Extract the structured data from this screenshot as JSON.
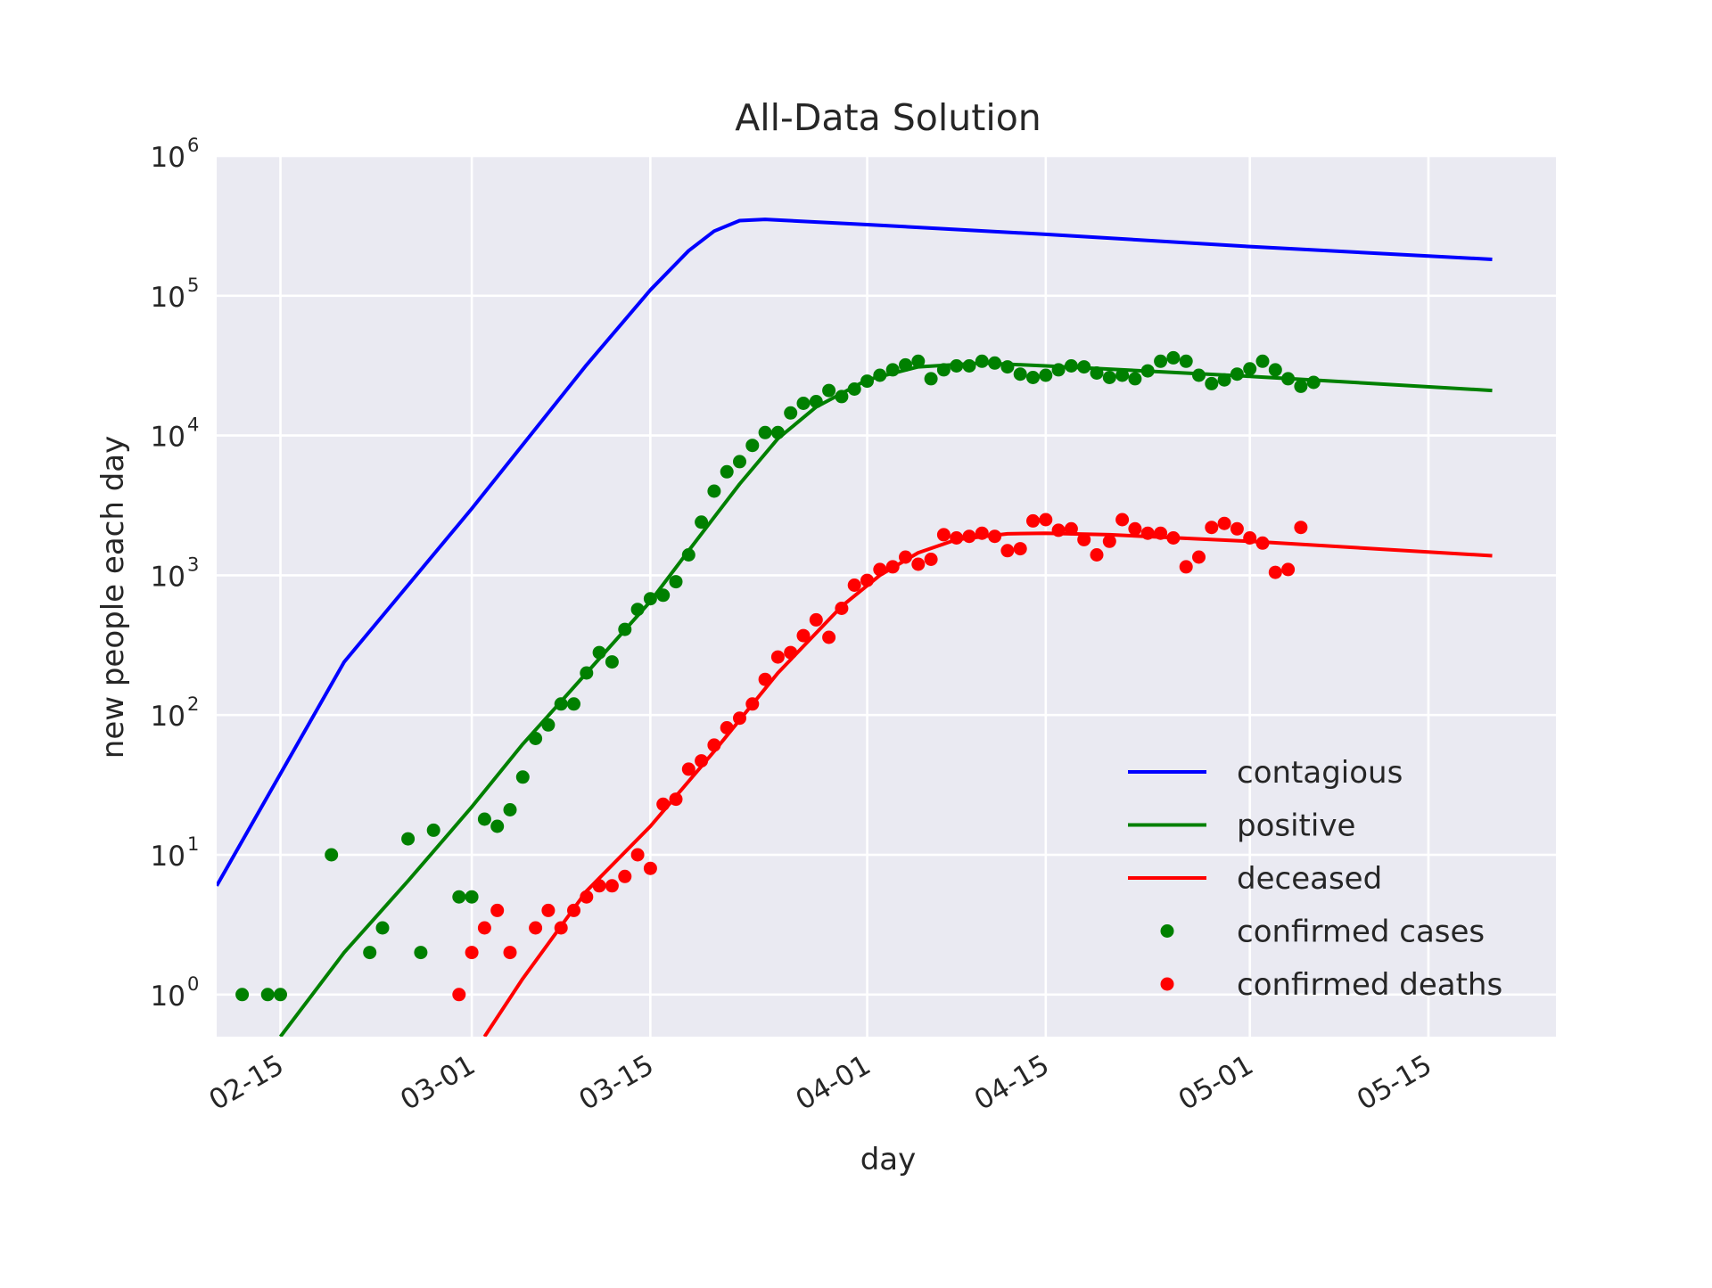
{
  "chart_data": {
    "type": "line",
    "title": "All-Data Solution",
    "xlabel": "day",
    "ylabel": "new people each day",
    "y_scale": "log",
    "ylim": [
      0.5,
      1000000
    ],
    "xlim": [
      "2020-02-10",
      "2020-05-25"
    ],
    "x_ticks": [
      "02-15",
      "03-01",
      "03-15",
      "04-01",
      "04-15",
      "05-01",
      "05-15"
    ],
    "y_ticks": [
      {
        "base": "10",
        "exp": "0"
      },
      {
        "base": "10",
        "exp": "1"
      },
      {
        "base": "10",
        "exp": "2"
      },
      {
        "base": "10",
        "exp": "3"
      },
      {
        "base": "10",
        "exp": "4"
      },
      {
        "base": "10",
        "exp": "5"
      },
      {
        "base": "10",
        "exp": "6"
      }
    ],
    "grid": true,
    "background": "#eaeaf2",
    "legend_position": "lower-right",
    "series": [
      {
        "name": "contagious",
        "kind": "line",
        "color": "#0000ff",
        "points": [
          [
            "2020-02-10",
            6
          ],
          [
            "2020-02-15",
            38
          ],
          [
            "2020-02-20",
            240
          ],
          [
            "2020-03-01",
            3000
          ],
          [
            "2020-03-10",
            32000
          ],
          [
            "2020-03-15",
            110000
          ],
          [
            "2020-03-18",
            210000
          ],
          [
            "2020-03-20",
            290000
          ],
          [
            "2020-03-22",
            345000
          ],
          [
            "2020-03-24",
            352000
          ],
          [
            "2020-04-01",
            323000
          ],
          [
            "2020-04-15",
            275000
          ],
          [
            "2020-05-01",
            225000
          ],
          [
            "2020-05-20",
            182000
          ]
        ]
      },
      {
        "name": "positive",
        "kind": "line",
        "color": "#008000",
        "points": [
          [
            "2020-02-15",
            0.5
          ],
          [
            "2020-02-20",
            2
          ],
          [
            "2020-02-25",
            6.5
          ],
          [
            "2020-03-01",
            22
          ],
          [
            "2020-03-05",
            62
          ],
          [
            "2020-03-10",
            200
          ],
          [
            "2020-03-15",
            650
          ],
          [
            "2020-03-18",
            1500
          ],
          [
            "2020-03-20",
            2600
          ],
          [
            "2020-03-22",
            4500
          ],
          [
            "2020-03-25",
            9500
          ],
          [
            "2020-03-28",
            16000
          ],
          [
            "2020-04-01",
            25000
          ],
          [
            "2020-04-05",
            31000
          ],
          [
            "2020-04-10",
            33000
          ],
          [
            "2020-04-15",
            31500
          ],
          [
            "2020-05-01",
            26500
          ],
          [
            "2020-05-20",
            21000
          ]
        ]
      },
      {
        "name": "deceased",
        "kind": "line",
        "color": "#ff0000",
        "points": [
          [
            "2020-03-02",
            0.5
          ],
          [
            "2020-03-05",
            1.3
          ],
          [
            "2020-03-10",
            5.5
          ],
          [
            "2020-03-15",
            16
          ],
          [
            "2020-03-20",
            55
          ],
          [
            "2020-03-25",
            200
          ],
          [
            "2020-03-30",
            600
          ],
          [
            "2020-04-02",
            1000
          ],
          [
            "2020-04-05",
            1450
          ],
          [
            "2020-04-08",
            1800
          ],
          [
            "2020-04-12",
            1980
          ],
          [
            "2020-04-15",
            2000
          ],
          [
            "2020-04-20",
            1950
          ],
          [
            "2020-05-01",
            1750
          ],
          [
            "2020-05-20",
            1380
          ]
        ]
      },
      {
        "name": "confirmed cases",
        "kind": "scatter",
        "color": "#008000",
        "points": [
          [
            "2020-02-12",
            1
          ],
          [
            "2020-02-14",
            1
          ],
          [
            "2020-02-15",
            1
          ],
          [
            "2020-02-19",
            10
          ],
          [
            "2020-02-22",
            2
          ],
          [
            "2020-02-23",
            3
          ],
          [
            "2020-02-25",
            13
          ],
          [
            "2020-02-26",
            2
          ],
          [
            "2020-02-27",
            15
          ],
          [
            "2020-02-29",
            5
          ],
          [
            "2020-03-01",
            5
          ],
          [
            "2020-03-02",
            18
          ],
          [
            "2020-03-03",
            16
          ],
          [
            "2020-03-04",
            21
          ],
          [
            "2020-03-05",
            36
          ],
          [
            "2020-03-06",
            68
          ],
          [
            "2020-03-07",
            85
          ],
          [
            "2020-03-08",
            120
          ],
          [
            "2020-03-09",
            120
          ],
          [
            "2020-03-10",
            200
          ],
          [
            "2020-03-11",
            280
          ],
          [
            "2020-03-12",
            240
          ],
          [
            "2020-03-13",
            410
          ],
          [
            "2020-03-14",
            570
          ],
          [
            "2020-03-15",
            680
          ],
          [
            "2020-03-16",
            720
          ],
          [
            "2020-03-17",
            900
          ],
          [
            "2020-03-18",
            1400
          ],
          [
            "2020-03-19",
            2400
          ],
          [
            "2020-03-20",
            4000
          ],
          [
            "2020-03-21",
            5500
          ],
          [
            "2020-03-22",
            6500
          ],
          [
            "2020-03-23",
            8500
          ],
          [
            "2020-03-24",
            10500
          ],
          [
            "2020-03-25",
            10500
          ],
          [
            "2020-03-26",
            14500
          ],
          [
            "2020-03-27",
            17000
          ],
          [
            "2020-03-28",
            17500
          ],
          [
            "2020-03-29",
            21000
          ],
          [
            "2020-03-30",
            19000
          ],
          [
            "2020-03-31",
            21500
          ],
          [
            "2020-04-01",
            24500
          ],
          [
            "2020-04-02",
            27000
          ],
          [
            "2020-04-03",
            29500
          ],
          [
            "2020-04-04",
            32000
          ],
          [
            "2020-04-05",
            34000
          ],
          [
            "2020-04-06",
            25500
          ],
          [
            "2020-04-07",
            29500
          ],
          [
            "2020-04-08",
            31500
          ],
          [
            "2020-04-09",
            31500
          ],
          [
            "2020-04-10",
            34000
          ],
          [
            "2020-04-11",
            33000
          ],
          [
            "2020-04-12",
            31000
          ],
          [
            "2020-04-13",
            27500
          ],
          [
            "2020-04-14",
            26000
          ],
          [
            "2020-04-15",
            27000
          ],
          [
            "2020-04-16",
            29500
          ],
          [
            "2020-04-17",
            31500
          ],
          [
            "2020-04-18",
            31000
          ],
          [
            "2020-04-19",
            28000
          ],
          [
            "2020-04-20",
            26000
          ],
          [
            "2020-04-21",
            27000
          ],
          [
            "2020-04-22",
            25500
          ],
          [
            "2020-04-23",
            29000
          ],
          [
            "2020-04-24",
            34000
          ],
          [
            "2020-04-25",
            36000
          ],
          [
            "2020-04-26",
            34000
          ],
          [
            "2020-04-27",
            27000
          ],
          [
            "2020-04-28",
            23500
          ],
          [
            "2020-04-29",
            25000
          ],
          [
            "2020-04-30",
            27500
          ],
          [
            "2020-05-01",
            30000
          ],
          [
            "2020-05-02",
            34000
          ],
          [
            "2020-05-03",
            29500
          ],
          [
            "2020-05-04",
            25500
          ],
          [
            "2020-05-05",
            22500
          ],
          [
            "2020-05-06",
            24000
          ]
        ]
      },
      {
        "name": "confirmed deaths",
        "kind": "scatter",
        "color": "#ff0000",
        "points": [
          [
            "2020-02-29",
            1
          ],
          [
            "2020-03-01",
            2
          ],
          [
            "2020-03-02",
            3
          ],
          [
            "2020-03-03",
            4
          ],
          [
            "2020-03-04",
            2
          ],
          [
            "2020-03-06",
            3
          ],
          [
            "2020-03-07",
            4
          ],
          [
            "2020-03-08",
            3
          ],
          [
            "2020-03-09",
            4
          ],
          [
            "2020-03-10",
            5
          ],
          [
            "2020-03-11",
            6
          ],
          [
            "2020-03-12",
            6
          ],
          [
            "2020-03-13",
            7
          ],
          [
            "2020-03-14",
            10
          ],
          [
            "2020-03-15",
            8
          ],
          [
            "2020-03-16",
            23
          ],
          [
            "2020-03-17",
            25
          ],
          [
            "2020-03-18",
            41
          ],
          [
            "2020-03-19",
            47
          ],
          [
            "2020-03-20",
            61
          ],
          [
            "2020-03-21",
            81
          ],
          [
            "2020-03-22",
            95
          ],
          [
            "2020-03-23",
            120
          ],
          [
            "2020-03-24",
            180
          ],
          [
            "2020-03-25",
            260
          ],
          [
            "2020-03-26",
            280
          ],
          [
            "2020-03-27",
            370
          ],
          [
            "2020-03-28",
            480
          ],
          [
            "2020-03-29",
            360
          ],
          [
            "2020-03-30",
            580
          ],
          [
            "2020-03-31",
            850
          ],
          [
            "2020-04-01",
            920
          ],
          [
            "2020-04-02",
            1100
          ],
          [
            "2020-04-03",
            1150
          ],
          [
            "2020-04-04",
            1350
          ],
          [
            "2020-04-05",
            1200
          ],
          [
            "2020-04-06",
            1300
          ],
          [
            "2020-04-07",
            1950
          ],
          [
            "2020-04-08",
            1850
          ],
          [
            "2020-04-09",
            1900
          ],
          [
            "2020-04-10",
            2000
          ],
          [
            "2020-04-11",
            1900
          ],
          [
            "2020-04-12",
            1500
          ],
          [
            "2020-04-13",
            1550
          ],
          [
            "2020-04-14",
            2450
          ],
          [
            "2020-04-15",
            2500
          ],
          [
            "2020-04-16",
            2100
          ],
          [
            "2020-04-17",
            2150
          ],
          [
            "2020-04-18",
            1800
          ],
          [
            "2020-04-19",
            1400
          ],
          [
            "2020-04-20",
            1750
          ],
          [
            "2020-04-21",
            2500
          ],
          [
            "2020-04-22",
            2150
          ],
          [
            "2020-04-23",
            2000
          ],
          [
            "2020-04-24",
            2000
          ],
          [
            "2020-04-25",
            1850
          ],
          [
            "2020-04-26",
            1150
          ],
          [
            "2020-04-27",
            1350
          ],
          [
            "2020-04-28",
            2200
          ],
          [
            "2020-04-29",
            2350
          ],
          [
            "2020-04-30",
            2150
          ],
          [
            "2020-05-01",
            1850
          ],
          [
            "2020-05-02",
            1700
          ],
          [
            "2020-05-03",
            1050
          ],
          [
            "2020-05-04",
            1100
          ],
          [
            "2020-05-05",
            2200
          ]
        ]
      }
    ]
  }
}
